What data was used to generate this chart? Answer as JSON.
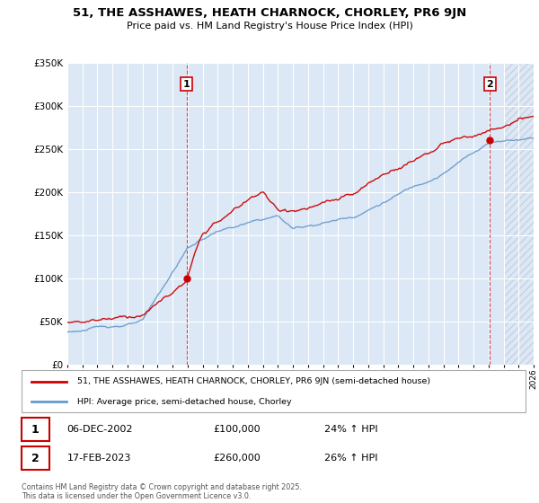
{
  "title": "51, THE ASSHAWES, HEATH CHARNOCK, CHORLEY, PR6 9JN",
  "subtitle": "Price paid vs. HM Land Registry's House Price Index (HPI)",
  "legend_label_red": "51, THE ASSHAWES, HEATH CHARNOCK, CHORLEY, PR6 9JN (semi-detached house)",
  "legend_label_blue": "HPI: Average price, semi-detached house, Chorley",
  "footer": "Contains HM Land Registry data © Crown copyright and database right 2025.\nThis data is licensed under the Open Government Licence v3.0.",
  "annotation1_label": "1",
  "annotation1_date": "06-DEC-2002",
  "annotation1_price": "£100,000",
  "annotation1_hpi": "24% ↑ HPI",
  "annotation2_label": "2",
  "annotation2_date": "17-FEB-2023",
  "annotation2_price": "£260,000",
  "annotation2_hpi": "26% ↑ HPI",
  "ylim": [
    0,
    350000
  ],
  "yticks": [
    0,
    50000,
    100000,
    150000,
    200000,
    250000,
    300000,
    350000
  ],
  "xlim_start": 1995,
  "xlim_end": 2026,
  "background_color": "#ffffff",
  "plot_bg_color": "#dce8f5",
  "grid_color": "#ffffff",
  "red_color": "#cc0000",
  "blue_color": "#6699cc",
  "annotation_box_color": "#cc0000",
  "hatch_color": "#c0c8d8",
  "sale1_x": 2002.917,
  "sale2_x": 2023.083,
  "sale1_y": 100000,
  "sale2_y": 260000
}
